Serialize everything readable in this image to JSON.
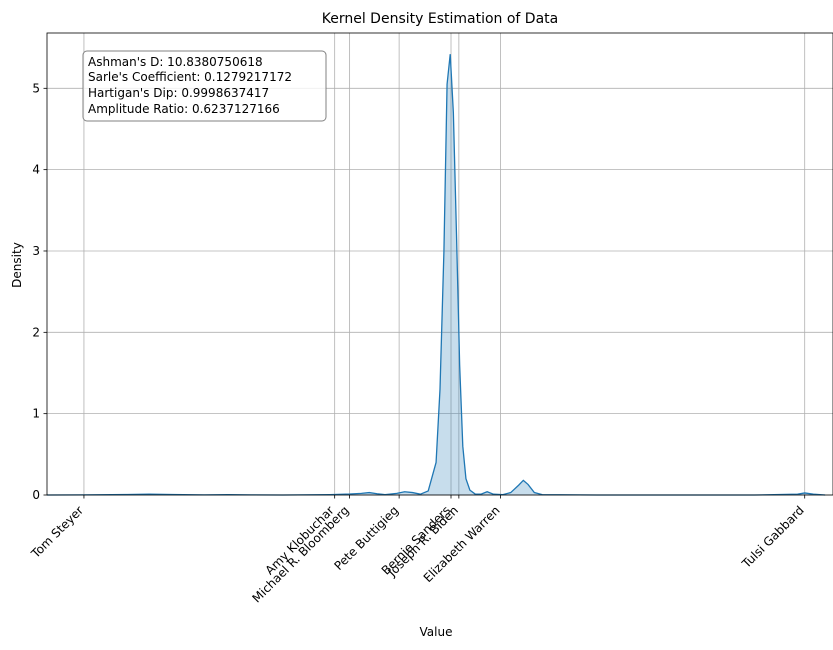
{
  "chart_data": {
    "type": "area",
    "title": "Kernel Density Estimation of Data",
    "xlabel": "Value",
    "ylabel": "Density",
    "ylim": [
      0,
      5.68
    ],
    "yticks": [
      0,
      1,
      2,
      3,
      4,
      5
    ],
    "grid": true,
    "line_color": "#1f77b4",
    "fill_color": "#1f77b4",
    "categories": [
      {
        "label": "Tom Steyer",
        "x": 0.047
      },
      {
        "label": "Amy Klobuchar",
        "x": 0.366
      },
      {
        "label": "Michael R. Bloomberg",
        "x": 0.385
      },
      {
        "label": "Pete Buttigieg",
        "x": 0.448
      },
      {
        "label": "Bernie Sanders",
        "x": 0.514
      },
      {
        "label": "Joseph R. Biden",
        "x": 0.524
      },
      {
        "label": "Elizabeth Warren",
        "x": 0.577
      },
      {
        "label": "Tulsi Gabbard",
        "x": 0.964
      }
    ],
    "xlim": [
      0,
      1
    ],
    "series": [
      {
        "points": [
          [
            0.0,
            0.0
          ],
          [
            0.047,
            0.002
          ],
          [
            0.1,
            0.006
          ],
          [
            0.13,
            0.01
          ],
          [
            0.16,
            0.006
          ],
          [
            0.2,
            0.002
          ],
          [
            0.23,
            0.005
          ],
          [
            0.26,
            0.002
          ],
          [
            0.3,
            0.0
          ],
          [
            0.36,
            0.005
          ],
          [
            0.385,
            0.012
          ],
          [
            0.4,
            0.02
          ],
          [
            0.41,
            0.03
          ],
          [
            0.42,
            0.015
          ],
          [
            0.43,
            0.005
          ],
          [
            0.445,
            0.02
          ],
          [
            0.455,
            0.04
          ],
          [
            0.465,
            0.03
          ],
          [
            0.475,
            0.01
          ],
          [
            0.485,
            0.05
          ],
          [
            0.495,
            0.4
          ],
          [
            0.5,
            1.3
          ],
          [
            0.505,
            3.0
          ],
          [
            0.509,
            5.05
          ],
          [
            0.513,
            5.42
          ],
          [
            0.517,
            4.7
          ],
          [
            0.521,
            3.2
          ],
          [
            0.525,
            1.6
          ],
          [
            0.529,
            0.6
          ],
          [
            0.533,
            0.2
          ],
          [
            0.538,
            0.06
          ],
          [
            0.545,
            0.01
          ],
          [
            0.552,
            0.01
          ],
          [
            0.56,
            0.04
          ],
          [
            0.568,
            0.01
          ],
          [
            0.58,
            0.005
          ],
          [
            0.59,
            0.03
          ],
          [
            0.6,
            0.12
          ],
          [
            0.606,
            0.18
          ],
          [
            0.612,
            0.13
          ],
          [
            0.62,
            0.03
          ],
          [
            0.63,
            0.005
          ],
          [
            0.7,
            0.0
          ],
          [
            0.8,
            0.0
          ],
          [
            0.9,
            0.0
          ],
          [
            0.955,
            0.01
          ],
          [
            0.964,
            0.025
          ],
          [
            0.975,
            0.01
          ],
          [
            0.99,
            0.0
          ]
        ]
      }
    ],
    "annotations": [
      "Ashman's D: 10.8380750618",
      "Sarle's Coefficient: 0.1279217172",
      "Hartigan's Dip: 0.9998637417",
      "Amplitude Ratio: 0.6237127166"
    ]
  }
}
